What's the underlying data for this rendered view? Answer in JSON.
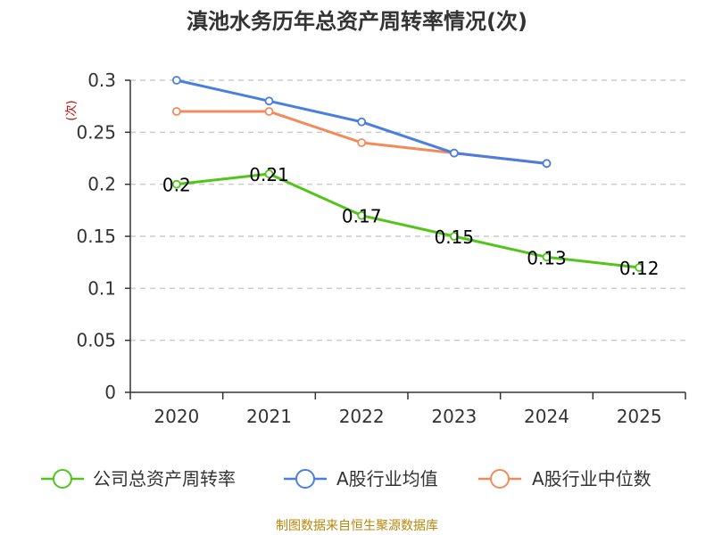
{
  "chart_data": {
    "type": "line",
    "title": "滇池水务历年总资产周转率情况(次)",
    "ylabel": "(次)",
    "xlabel": "",
    "categories": [
      "2020",
      "2021",
      "2022",
      "2023",
      "2024",
      "2025"
    ],
    "ylim": [
      0,
      0.3
    ],
    "yticks": [
      "0",
      "0.05",
      "0.1",
      "0.15",
      "0.2",
      "0.25",
      "0.3"
    ],
    "grid": true,
    "legend_position": "bottom",
    "series": [
      {
        "name": "公司总资产周转率",
        "color": "#52c41a",
        "values": [
          0.2,
          0.21,
          0.17,
          0.15,
          0.13,
          0.12
        ],
        "labels": [
          "0.2",
          "0.21",
          "0.17",
          "0.15",
          "0.13",
          "0.12"
        ]
      },
      {
        "name": "A股行业均值",
        "color": "#4a7fe0",
        "values": [
          0.3,
          0.28,
          0.26,
          0.23,
          0.22,
          null
        ]
      },
      {
        "name": "A股行业中位数",
        "color": "#f28b5b",
        "values": [
          0.27,
          0.27,
          0.24,
          0.23,
          0.22,
          null
        ]
      }
    ],
    "source": "制图数据来自恒生聚源数据库"
  }
}
